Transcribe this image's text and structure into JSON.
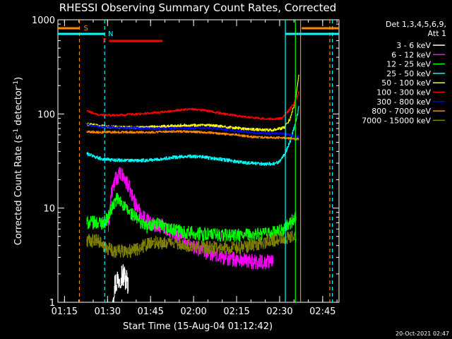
{
  "chart_data": {
    "type": "line",
    "title": "RHESSI Observing Summary Count Rates, Corrected",
    "xlabel": "Start Time (15-Aug-04 01:12:42)",
    "ylabel_main": "Corrected Count Rate (s",
    "ylabel_sup1": "-1",
    "ylabel_mid": " detector",
    "ylabel_sup2": "-1",
    "ylabel_end": ")",
    "y_scale": "log",
    "ylim": [
      1,
      1000
    ],
    "xlim_minutes": [
      0,
      98
    ],
    "x_ticks": [
      {
        "label": "01:15",
        "minute": 2.3
      },
      {
        "label": "01:30",
        "minute": 17.3
      },
      {
        "label": "01:45",
        "minute": 32.3
      },
      {
        "label": "02:00",
        "minute": 47.3
      },
      {
        "label": "02:15",
        "minute": 62.3
      },
      {
        "label": "02:30",
        "minute": 77.3
      },
      {
        "label": "02:45",
        "minute": 92.3
      }
    ],
    "y_ticks": [
      {
        "label": "1",
        "value": 1
      },
      {
        "label": "10",
        "value": 10
      },
      {
        "label": "100",
        "value": 100
      },
      {
        "label": "1000",
        "value": 1000
      }
    ],
    "legend_header": [
      "Det 1,3,4,5,6,9,",
      "Att 1"
    ],
    "legend_position": "right",
    "series": [
      {
        "name": "3 - 6 keV",
        "color": "#ffffff",
        "points": [
          [
            19.0,
            1.2
          ],
          [
            20.0,
            1.6
          ],
          [
            21.0,
            1.8
          ],
          [
            22.0,
            2.0
          ],
          [
            23.0,
            1.9
          ],
          [
            24.0,
            1.7
          ],
          [
            24.5,
            1.3
          ]
        ]
      },
      {
        "name": "6 - 12 keV",
        "color": "#ff00ff",
        "points": [
          [
            17.5,
            6.0
          ],
          [
            18.5,
            14
          ],
          [
            20.0,
            20
          ],
          [
            21.5,
            23
          ],
          [
            23.0,
            21
          ],
          [
            25.0,
            16
          ],
          [
            27.0,
            11
          ],
          [
            29.0,
            8.5
          ],
          [
            31.0,
            7.5
          ],
          [
            33.0,
            6.8
          ],
          [
            36.0,
            6.5
          ],
          [
            40.0,
            5.5
          ],
          [
            44.0,
            4.5
          ],
          [
            48.0,
            3.8
          ],
          [
            52.0,
            3.4
          ],
          [
            56.0,
            3.1
          ],
          [
            60.0,
            2.9
          ],
          [
            64.0,
            2.8
          ],
          [
            68.0,
            2.7
          ],
          [
            72.0,
            2.7
          ],
          [
            75.0,
            2.7
          ]
        ]
      },
      {
        "name": "12 - 25 keV",
        "color": "#00ff00",
        "points": [
          [
            10.0,
            7.0
          ],
          [
            14.0,
            7.0
          ],
          [
            16.0,
            7.0
          ],
          [
            17.5,
            8.0
          ],
          [
            19.0,
            10.5
          ],
          [
            20.5,
            12.5
          ],
          [
            22.0,
            11.5
          ],
          [
            24.0,
            9.5
          ],
          [
            26.0,
            8.5
          ],
          [
            28.0,
            7.5
          ],
          [
            31.0,
            6.3
          ],
          [
            34.0,
            6.8
          ],
          [
            38.0,
            6.0
          ],
          [
            44.0,
            5.6
          ],
          [
            50.0,
            5.3
          ],
          [
            56.0,
            5.2
          ],
          [
            62.0,
            5.1
          ],
          [
            68.0,
            5.2
          ],
          [
            74.0,
            5.4
          ],
          [
            78.0,
            5.7
          ],
          [
            80.0,
            6.5
          ],
          [
            82.0,
            7.5
          ],
          [
            83.0,
            8.0
          ]
        ]
      },
      {
        "name": "25 - 50 keV",
        "color": "#00ffff",
        "points": [
          [
            10.0,
            38
          ],
          [
            13.0,
            35
          ],
          [
            16.0,
            33
          ],
          [
            20.0,
            32.5
          ],
          [
            25.0,
            32
          ],
          [
            30.0,
            32
          ],
          [
            35.0,
            33
          ],
          [
            40.0,
            34.5
          ],
          [
            45.0,
            35.5
          ],
          [
            50.0,
            35
          ],
          [
            55.0,
            33.5
          ],
          [
            60.0,
            32
          ],
          [
            65.0,
            30.5
          ],
          [
            70.0,
            29.5
          ],
          [
            75.0,
            29.5
          ],
          [
            77.0,
            31
          ],
          [
            79.0,
            37
          ],
          [
            81.0,
            52
          ],
          [
            82.5,
            75
          ],
          [
            83.5,
            100
          ],
          [
            84.0,
            120
          ]
        ]
      },
      {
        "name": "50 - 100 keV",
        "color": "#ffff00",
        "points": [
          [
            10.0,
            78
          ],
          [
            14.0,
            75
          ],
          [
            18.0,
            73
          ],
          [
            24.0,
            72
          ],
          [
            30.0,
            72
          ],
          [
            36.0,
            73.5
          ],
          [
            42.0,
            75.5
          ],
          [
            48.0,
            76
          ],
          [
            54.0,
            75
          ],
          [
            60.0,
            72
          ],
          [
            66.0,
            69
          ],
          [
            72.0,
            67.5
          ],
          [
            76.0,
            68
          ],
          [
            79.0,
            72
          ],
          [
            81.0,
            90
          ],
          [
            82.5,
            130
          ],
          [
            83.5,
            200
          ],
          [
            84.0,
            260
          ]
        ]
      },
      {
        "name": "100 - 300 keV",
        "color": "#ff0000",
        "points": [
          [
            10.0,
            108
          ],
          [
            14.0,
            98
          ],
          [
            18.0,
            97
          ],
          [
            24.0,
            98
          ],
          [
            30.0,
            101
          ],
          [
            36.0,
            104
          ],
          [
            42.0,
            110
          ],
          [
            47.0,
            113
          ],
          [
            52.0,
            108
          ],
          [
            58.0,
            100
          ],
          [
            64.0,
            94
          ],
          [
            70.0,
            90
          ],
          [
            75.0,
            88
          ],
          [
            78.0,
            90
          ],
          [
            80.0,
            105
          ],
          [
            82.0,
            125
          ],
          [
            83.5,
            155
          ],
          [
            84.0,
            175
          ]
        ]
      },
      {
        "name": "300 - 800 keV",
        "color": "#0000ff",
        "points": [
          [
            10.0,
            77
          ],
          [
            14.0,
            73
          ],
          [
            20.0,
            72
          ],
          [
            26.0,
            71
          ],
          [
            32.0,
            70
          ],
          [
            38.0,
            70
          ],
          [
            44.0,
            71
          ],
          [
            50.0,
            71
          ],
          [
            56.0,
            70
          ],
          [
            62.0,
            66
          ],
          [
            68.0,
            63
          ],
          [
            74.0,
            62
          ],
          [
            78.0,
            62
          ],
          [
            80.0,
            61
          ],
          [
            82.0,
            58
          ],
          [
            84.0,
            57
          ]
        ]
      },
      {
        "name": "800 - 7000 keV",
        "color": "#ff8800",
        "points": [
          [
            10.0,
            65
          ],
          [
            14.0,
            64
          ],
          [
            20.0,
            64
          ],
          [
            26.0,
            64
          ],
          [
            32.0,
            64
          ],
          [
            38.0,
            65
          ],
          [
            44.0,
            65
          ],
          [
            50.0,
            64
          ],
          [
            56.0,
            62
          ],
          [
            62.0,
            60
          ],
          [
            68.0,
            57
          ],
          [
            74.0,
            56
          ],
          [
            78.0,
            56
          ],
          [
            81.0,
            55
          ],
          [
            84.0,
            54
          ]
        ]
      },
      {
        "name": "7000 - 15000 keV",
        "color": "#808000",
        "points": [
          [
            10.0,
            4.5
          ],
          [
            14.0,
            4.5
          ],
          [
            16.0,
            3.8
          ],
          [
            20.0,
            3.5
          ],
          [
            26.0,
            3.5
          ],
          [
            30.0,
            4.0
          ],
          [
            34.0,
            4.3
          ],
          [
            40.0,
            4.3
          ],
          [
            46.0,
            4.0
          ],
          [
            52.0,
            3.8
          ],
          [
            58.0,
            3.8
          ],
          [
            64.0,
            3.8
          ],
          [
            70.0,
            4.2
          ],
          [
            76.0,
            4.6
          ],
          [
            80.0,
            4.8
          ],
          [
            83.0,
            5.0
          ]
        ]
      }
    ],
    "flags": [
      {
        "label": "S",
        "color": "#ff8800"
      },
      {
        "label": "N",
        "color": "#00ffff"
      },
      {
        "label": "F",
        "color": "#ff0000"
      }
    ],
    "footer_date": "20-Oct-2021 02:47"
  }
}
